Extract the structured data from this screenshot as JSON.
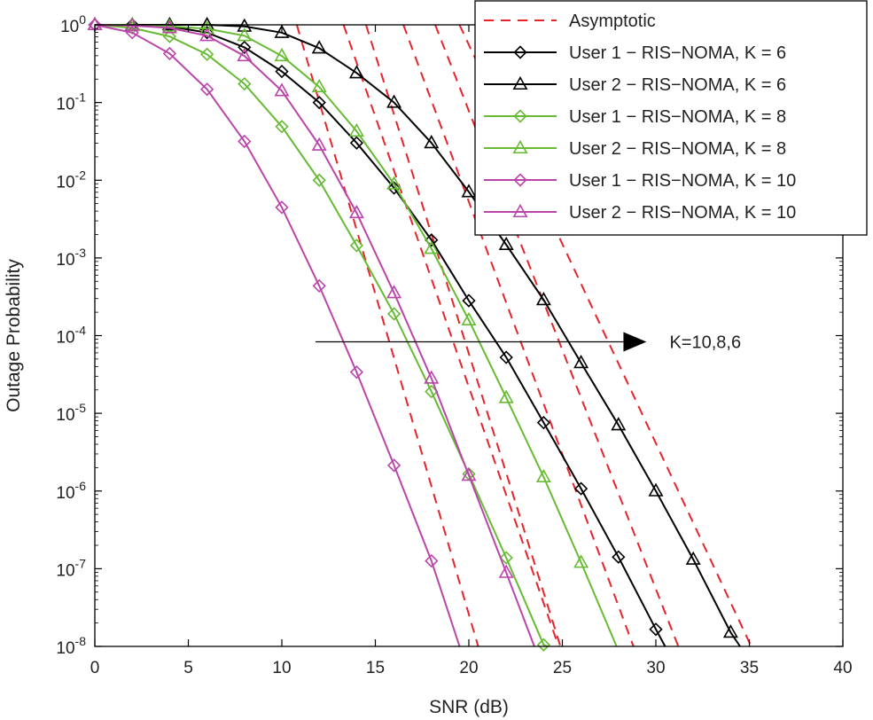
{
  "chart_data": {
    "type": "line",
    "title": "",
    "xlabel": "SNR (dB)",
    "ylabel": "Outage Probability",
    "xlim": [
      0,
      40
    ],
    "ylim_log10": [
      -8,
      0
    ],
    "yscale": "log",
    "x_ticks": [
      0,
      5,
      10,
      15,
      20,
      25,
      30,
      35,
      40
    ],
    "y_ticks": [
      {
        "base": "10",
        "exp": "0"
      },
      {
        "base": "10",
        "exp": "-1"
      },
      {
        "base": "10",
        "exp": "-2"
      },
      {
        "base": "10",
        "exp": "-3"
      },
      {
        "base": "10",
        "exp": "-4"
      },
      {
        "base": "10",
        "exp": "-5"
      },
      {
        "base": "10",
        "exp": "-6"
      },
      {
        "base": "10",
        "exp": "-7"
      },
      {
        "base": "10",
        "exp": "-8"
      }
    ],
    "grid": false,
    "legend_position": "top-right",
    "colors": {
      "black": "#000000",
      "green": "#66bb33",
      "magenta": "#bb44aa",
      "asymptote": "#e8232a"
    },
    "series": [
      {
        "name": "User 1 − RIS−NOMA, K = 6",
        "color": "#000000",
        "marker": "diamond",
        "x": [
          0,
          2,
          4,
          6,
          8,
          10,
          12,
          14,
          16,
          18,
          20,
          22,
          24,
          26,
          28,
          30,
          30.5
        ],
        "log10_y": [
          0,
          0,
          -0.02,
          -0.1,
          -0.29,
          -0.6,
          -1.0,
          -1.52,
          -2.1,
          -2.77,
          -3.55,
          -4.28,
          -5.12,
          -5.97,
          -6.85,
          -7.78,
          -8.0
        ]
      },
      {
        "name": "User 2 − RIS−NOMA, K = 6",
        "color": "#000000",
        "marker": "triangle",
        "x": [
          0,
          2,
          4,
          6,
          8,
          10,
          12,
          14,
          16,
          18,
          20,
          22,
          24,
          26,
          28,
          30,
          32,
          34,
          34.5
        ],
        "log10_y": [
          0,
          0,
          0,
          0,
          -0.02,
          -0.1,
          -0.3,
          -0.62,
          -1.0,
          -1.52,
          -2.15,
          -2.83,
          -3.54,
          -4.35,
          -5.15,
          -6.0,
          -6.88,
          -7.82,
          -8.0
        ]
      },
      {
        "name": "User 1 − RIS−NOMA, K = 8",
        "color": "#66bb33",
        "marker": "diamond",
        "x": [
          0,
          2,
          4,
          6,
          8,
          10,
          12,
          14,
          16,
          18,
          20,
          22,
          24,
          24.2
        ],
        "log10_y": [
          0,
          -0.04,
          -0.15,
          -0.38,
          -0.76,
          -1.31,
          -2.0,
          -2.84,
          -3.72,
          -4.72,
          -5.78,
          -6.86,
          -7.98,
          -8.0
        ]
      },
      {
        "name": "User 2 − RIS−NOMA, K = 8",
        "color": "#66bb33",
        "marker": "triangle",
        "x": [
          0,
          2,
          4,
          6,
          8,
          10,
          12,
          14,
          16,
          18,
          20,
          22,
          24,
          26,
          27.9
        ],
        "log10_y": [
          0,
          0,
          -0.02,
          -0.05,
          -0.14,
          -0.4,
          -0.8,
          -1.37,
          -2.05,
          -2.88,
          -3.8,
          -4.8,
          -5.82,
          -6.92,
          -8.0
        ]
      },
      {
        "name": "User 1 − RIS−NOMA, K = 10",
        "color": "#bb44aa",
        "marker": "diamond",
        "x": [
          0,
          2,
          4,
          6,
          8,
          10,
          12,
          14,
          16,
          18,
          19.5
        ],
        "log10_y": [
          0,
          -0.1,
          -0.37,
          -0.83,
          -1.5,
          -2.35,
          -3.36,
          -4.47,
          -5.67,
          -6.9,
          -8.0
        ]
      },
      {
        "name": "User 2 − RIS−NOMA, K = 10",
        "color": "#bb44aa",
        "marker": "triangle",
        "x": [
          0,
          2,
          4,
          6,
          8,
          10,
          12,
          14,
          16,
          18,
          20,
          22,
          23.5
        ],
        "log10_y": [
          0,
          -0.01,
          -0.04,
          -0.14,
          -0.4,
          -0.85,
          -1.55,
          -2.42,
          -3.45,
          -4.55,
          -5.8,
          -7.05,
          -8.0
        ]
      }
    ],
    "asymptotes": [
      {
        "name": "Asymptotic",
        "x": [
          10.8,
          20.5
        ],
        "log10_y": [
          0,
          -8
        ]
      },
      {
        "name": "Asymptotic",
        "x": [
          13.3,
          24.8
        ],
        "log10_y": [
          0,
          -8
        ]
      },
      {
        "name": "Asymptotic",
        "x": [
          14.5,
          24.9
        ],
        "log10_y": [
          0,
          -8
        ]
      },
      {
        "name": "Asymptotic",
        "x": [
          16.5,
          28.8
        ],
        "log10_y": [
          0,
          -8
        ]
      },
      {
        "name": "Asymptotic",
        "x": [
          18.2,
          31.2
        ],
        "log10_y": [
          0,
          -8
        ]
      },
      {
        "name": "Asymptotic",
        "x": [
          19.5,
          35.1
        ],
        "log10_y": [
          0,
          -8
        ]
      }
    ],
    "legend": [
      {
        "label": "Asymptotic",
        "color": "#e8232a",
        "dash": true,
        "marker": "none"
      },
      {
        "label": "User 1 − RIS−NOMA, K = 6",
        "color": "#000000",
        "dash": false,
        "marker": "diamond"
      },
      {
        "label": "User 2 − RIS−NOMA, K = 6",
        "color": "#000000",
        "dash": false,
        "marker": "triangle"
      },
      {
        "label": "User 1 − RIS−NOMA, K = 8",
        "color": "#66bb33",
        "dash": false,
        "marker": "diamond"
      },
      {
        "label": "User 2 − RIS−NOMA, K = 8",
        "color": "#66bb33",
        "dash": false,
        "marker": "triangle"
      },
      {
        "label": "User 1 − RIS−NOMA, K = 10",
        "color": "#bb44aa",
        "dash": false,
        "marker": "diamond"
      },
      {
        "label": "User 2 − RIS−NOMA, K = 10",
        "color": "#bb44aa",
        "dash": false,
        "marker": "triangle"
      }
    ],
    "annotation": {
      "text": "K=10,8,6",
      "arrow_from_x": 11.8,
      "arrow_to_x": 29.5,
      "log10_y": -4.08
    }
  }
}
